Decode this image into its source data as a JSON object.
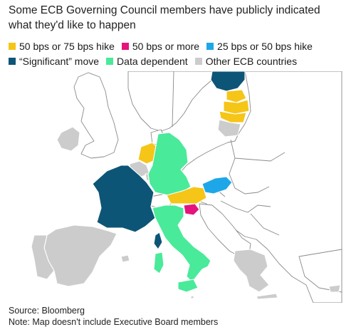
{
  "title": "Some ECB Governing Council members have publicly indicated what they'd like to happen",
  "legend": [
    {
      "key": "hike_50_75",
      "label": "50 bps or 75 bps hike",
      "color": "#F5C518"
    },
    {
      "key": "bps_50_more",
      "label": "50 bps or more",
      "color": "#E5137D"
    },
    {
      "key": "hike_25_50",
      "label": "25 bps or 50 bps hike",
      "color": "#1EA7E8"
    },
    {
      "key": "significant",
      "label": "“Significant” move",
      "color": "#0D5577"
    },
    {
      "key": "data_dependent",
      "label": "Data dependent",
      "color": "#49EA99"
    },
    {
      "key": "other_ecb",
      "label": "Other ECB countries",
      "color": "#CCCCCC"
    }
  ],
  "map": {
    "regions": [
      {
        "name": "Finland",
        "category": "significant"
      },
      {
        "name": "Estonia",
        "category": "hike_50_75"
      },
      {
        "name": "Latvia",
        "category": "hike_50_75"
      },
      {
        "name": "Lithuania",
        "category": "hike_50_75"
      },
      {
        "name": "Netherlands",
        "category": "hike_50_75"
      },
      {
        "name": "Austria",
        "category": "hike_50_75"
      },
      {
        "name": "Slovenia",
        "category": "bps_50_more"
      },
      {
        "name": "Slovakia",
        "category": "hike_25_50"
      },
      {
        "name": "France",
        "category": "significant"
      },
      {
        "name": "Germany",
        "category": "data_dependent"
      },
      {
        "name": "Italy",
        "category": "data_dependent"
      },
      {
        "name": "Belgium",
        "category": "other_ecb"
      },
      {
        "name": "Luxembourg",
        "category": "other_ecb"
      },
      {
        "name": "Spain",
        "category": "other_ecb"
      },
      {
        "name": "Portugal",
        "category": "other_ecb"
      },
      {
        "name": "Ireland",
        "category": "other_ecb"
      },
      {
        "name": "Greece",
        "category": "other_ecb"
      },
      {
        "name": "Cyprus",
        "category": "other_ecb"
      },
      {
        "name": "Malta",
        "category": "other_ecb"
      }
    ]
  },
  "footer": {
    "source": "Source: Bloomberg",
    "note": "Note: Map doesn't include Executive Board members"
  }
}
